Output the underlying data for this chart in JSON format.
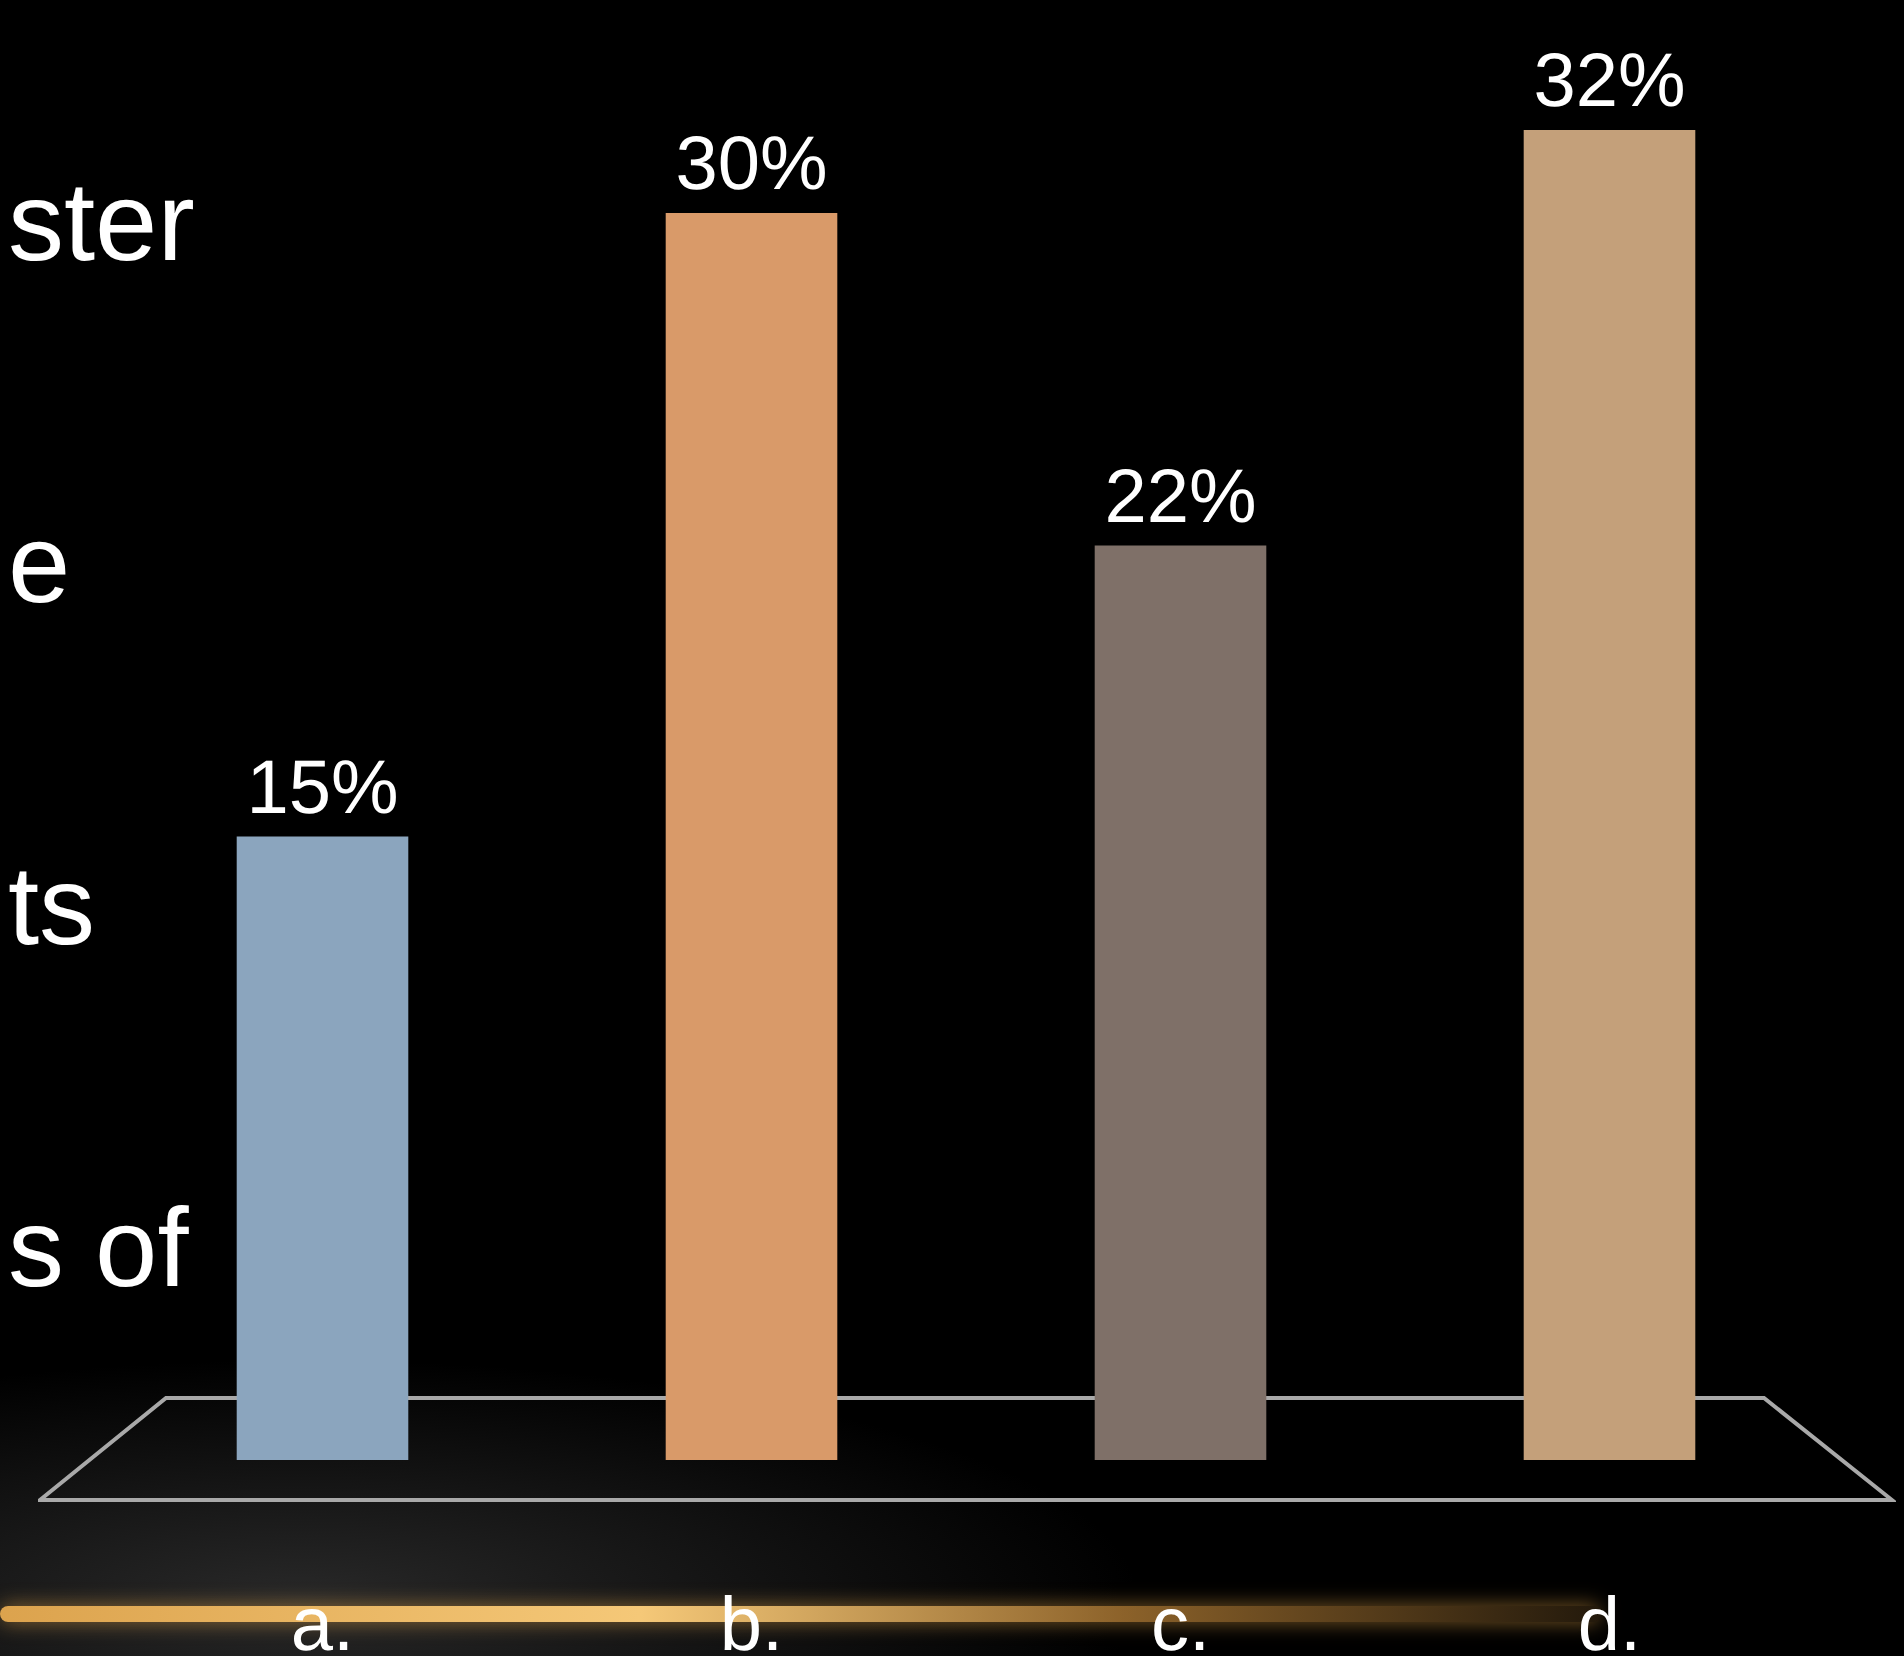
{
  "chart_data": {
    "type": "bar",
    "categories": [
      "a.",
      "b.",
      "c.",
      "d."
    ],
    "values": [
      15,
      30,
      22,
      32
    ],
    "colors": [
      "#8ba5be",
      "#d99a69",
      "#7f7068",
      "#c4a07a"
    ],
    "value_labels": [
      "15%",
      "30%",
      "22%",
      "32%"
    ],
    "annotations": [
      "ster",
      "e",
      "ts",
      "s of"
    ]
  }
}
